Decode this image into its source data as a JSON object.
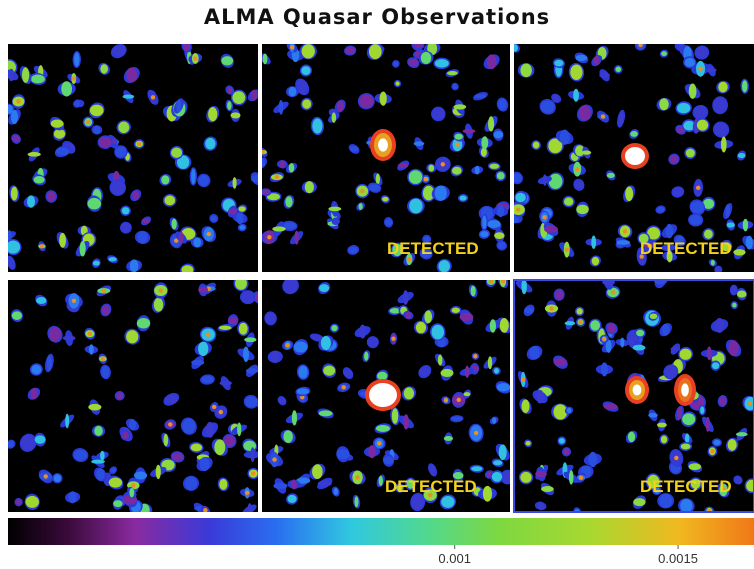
{
  "title": "ALMA Quasar Observations",
  "panel_labels": [
    "DETECTED",
    "DETECTED",
    "DETECTED",
    "DETECTED"
  ],
  "colorbar": {
    "lim": [
      0,
      0.00167
    ],
    "ticks": [
      0.001,
      0.0015
    ]
  }
}
